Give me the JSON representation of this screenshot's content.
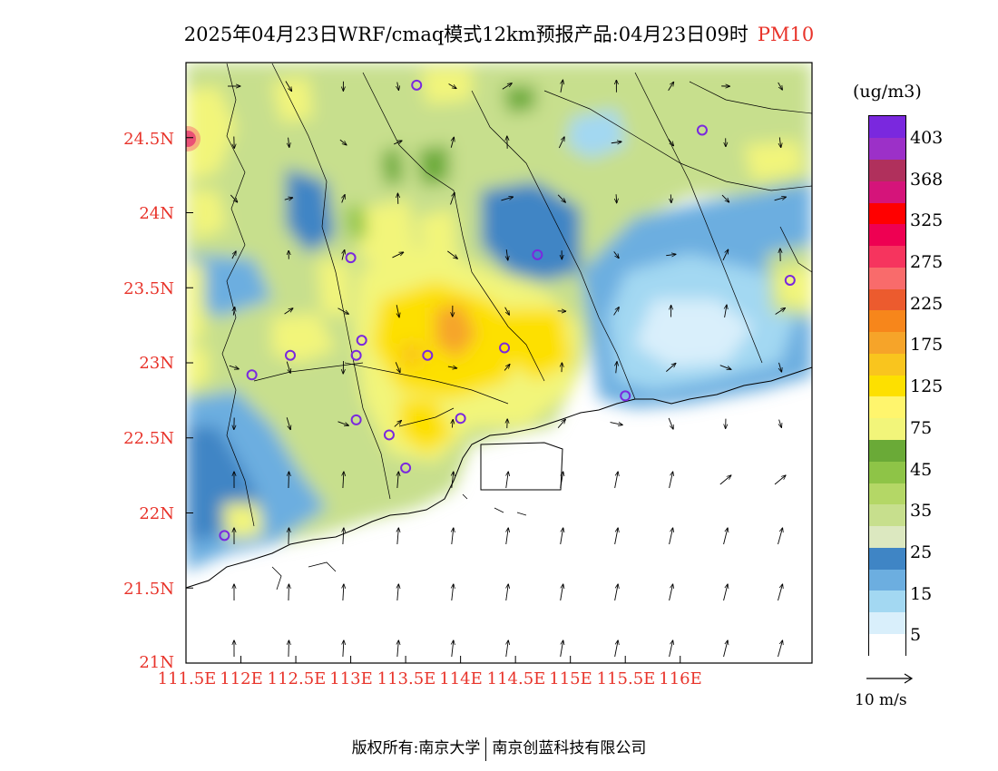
{
  "title": {
    "main": "2025年04月23日WRF/cmaq模式12km预报产品:04月23日09时",
    "pollutant": "PM10"
  },
  "axes": {
    "y_ticks": [
      "24.5N",
      "24N",
      "23.5N",
      "23N",
      "22.5N",
      "22N",
      "21.5N",
      "21N"
    ],
    "x_ticks": [
      "111.5E",
      "112E",
      "112.5E",
      "113E",
      "113.5E",
      "114E",
      "114.5E",
      "115E",
      "115.5E",
      "116E"
    ],
    "lon_range": [
      111.5,
      117.2
    ],
    "lat_range": [
      21.0,
      25.0
    ]
  },
  "colorbar": {
    "unit": "(ug/m3)",
    "labels": [
      "403",
      "368",
      "325",
      "275",
      "225",
      "175",
      "125",
      "75",
      "45",
      "35",
      "25",
      "15",
      "5"
    ],
    "colors": [
      "#ffffff",
      "#d9effb",
      "#a3d8f2",
      "#6caee0",
      "#3f85c5",
      "#dce8c0",
      "#c7df8d",
      "#b4d766",
      "#8ec447",
      "#6aaa37",
      "#f2f57a",
      "#fff56d",
      "#fde000",
      "#f9c51e",
      "#f6a429",
      "#f7861b",
      "#ec5b2e",
      "#f96b6b",
      "#f6345e",
      "#ee0052",
      "#ff0000",
      "#d5147a",
      "#b0305c",
      "#9c30c8",
      "#7a28de"
    ]
  },
  "reference_vector": {
    "label": "10 m/s"
  },
  "footer": {
    "left": "版权所有:南京大学",
    "right": "南京创蓝科技有限公司"
  },
  "map_layers": {
    "site_markers": [
      [
        113.6,
        24.85
      ],
      [
        116.2,
        24.55
      ],
      [
        113.0,
        23.7
      ],
      [
        114.7,
        23.72
      ],
      [
        117.0,
        23.55
      ],
      [
        113.1,
        23.15
      ],
      [
        113.05,
        23.05
      ],
      [
        112.45,
        23.05
      ],
      [
        113.7,
        23.05
      ],
      [
        114.4,
        23.1
      ],
      [
        112.1,
        22.92
      ],
      [
        115.5,
        22.78
      ],
      [
        113.05,
        22.62
      ],
      [
        113.35,
        22.52
      ],
      [
        114.0,
        22.63
      ],
      [
        113.5,
        22.3
      ],
      [
        111.85,
        21.85
      ]
    ]
  }
}
